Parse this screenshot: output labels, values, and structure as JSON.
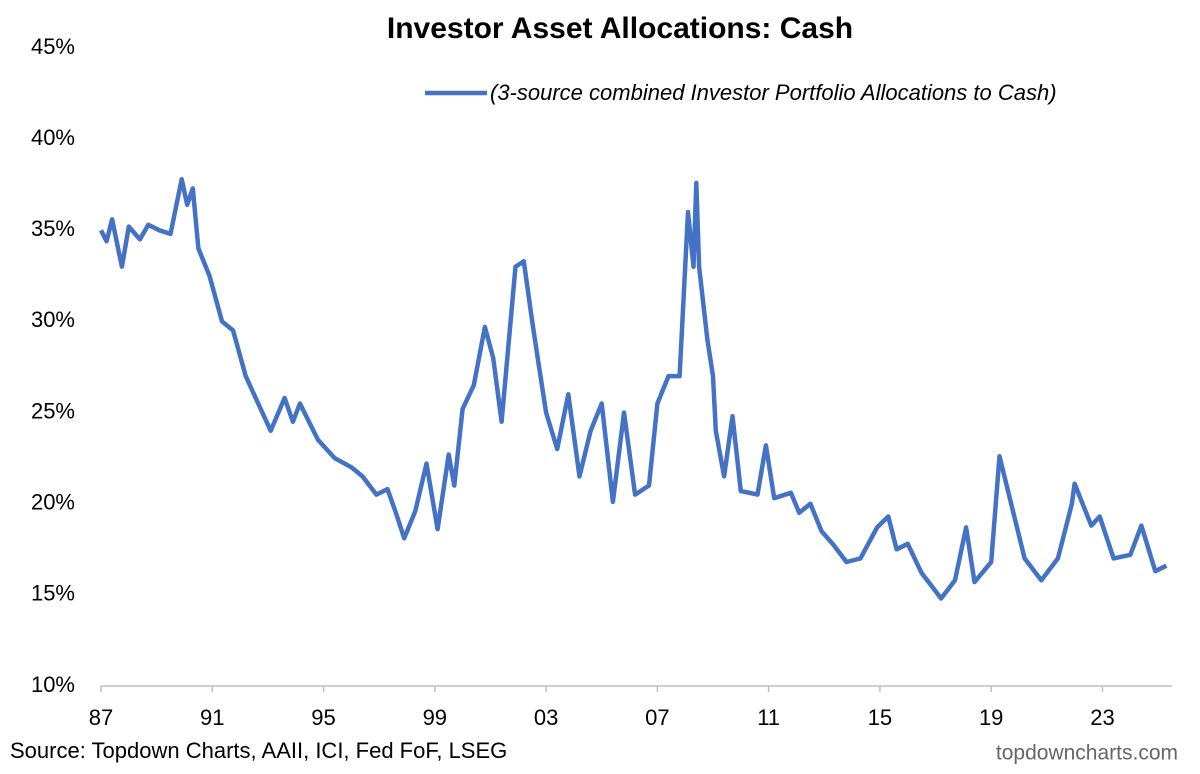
{
  "chart_data": {
    "type": "line",
    "title": "Investor Asset Allocations: Cash",
    "source": "Source: Topdown Charts, AAII, ICI, Fed FoF, LSEG",
    "watermark": "topdowncharts.com",
    "legend": "upper right",
    "series": [
      {
        "name": "(3-source combined Investor Portfolio Allocations to Cash)",
        "color": "#4472c4",
        "x": [
          1987.0,
          1987.2,
          1987.4,
          1987.75,
          1988.0,
          1988.4,
          1988.7,
          1989.1,
          1989.5,
          1989.9,
          1990.1,
          1990.3,
          1990.5,
          1990.9,
          1991.35,
          1991.75,
          1992.2,
          1992.65,
          1993.1,
          1993.6,
          1993.9,
          1994.15,
          1994.8,
          1995.4,
          1996.0,
          1996.4,
          1996.9,
          1997.3,
          1997.6,
          1997.9,
          1998.3,
          1998.7,
          1999.1,
          1999.5,
          1999.7,
          2000.0,
          2000.4,
          2000.8,
          2001.1,
          2001.4,
          2001.9,
          2002.2,
          2002.5,
          2002.7,
          2003.0,
          2003.4,
          2003.8,
          2004.2,
          2004.6,
          2005.0,
          2005.4,
          2005.8,
          2006.2,
          2006.7,
          2007.0,
          2007.4,
          2007.8,
          2008.1,
          2008.3,
          2008.4,
          2008.5,
          2008.8,
          2009.0,
          2009.1,
          2009.4,
          2009.7,
          2010.0,
          2010.6,
          2010.9,
          2011.2,
          2011.8,
          2012.1,
          2012.5,
          2012.9,
          2013.3,
          2013.8,
          2014.3,
          2014.9,
          2015.3,
          2015.6,
          2016.0,
          2016.5,
          2016.8,
          2017.2,
          2017.7,
          2018.1,
          2018.4,
          2019.0,
          2019.3,
          2019.8,
          2020.2,
          2020.8,
          2021.4,
          2021.9,
          2022.0,
          2022.6,
          2022.9,
          2023.4,
          2024.0,
          2024.4,
          2024.9,
          2025.3
        ],
        "values": [
          35.0,
          34.4,
          35.6,
          33.0,
          35.2,
          34.5,
          35.3,
          35.0,
          34.8,
          37.8,
          36.4,
          37.3,
          34.0,
          32.5,
          30.0,
          29.5,
          27.0,
          25.5,
          24.0,
          25.8,
          24.5,
          25.5,
          23.5,
          22.5,
          22.0,
          21.5,
          20.5,
          20.8,
          19.5,
          18.1,
          19.6,
          22.2,
          18.6,
          22.7,
          21.0,
          25.2,
          26.5,
          29.7,
          28.0,
          24.5,
          33.0,
          33.3,
          30.0,
          28.0,
          25.0,
          23.0,
          26.0,
          21.5,
          24.0,
          25.5,
          20.1,
          25.0,
          20.5,
          21.0,
          25.5,
          27.0,
          27.0,
          36.0,
          33.0,
          37.6,
          33.0,
          29.0,
          27.0,
          24.0,
          21.5,
          24.8,
          20.7,
          20.5,
          23.2,
          20.3,
          20.6,
          19.5,
          20.0,
          18.5,
          17.8,
          16.8,
          17.0,
          18.7,
          19.3,
          17.5,
          17.8,
          16.2,
          15.6,
          14.8,
          15.8,
          18.7,
          15.7,
          16.8,
          22.6,
          19.5,
          17.0,
          15.8,
          17.0,
          20.0,
          21.1,
          18.8,
          19.3,
          17.0,
          17.2,
          18.8,
          16.3,
          16.6
        ]
      }
    ],
    "xlim": [
      1987,
      2025.5
    ],
    "xticks": [
      {
        "value": 1987,
        "label": "87"
      },
      {
        "value": 1991,
        "label": "91"
      },
      {
        "value": 1995,
        "label": "95"
      },
      {
        "value": 1999,
        "label": "99"
      },
      {
        "value": 2003,
        "label": "03"
      },
      {
        "value": 2007,
        "label": "07"
      },
      {
        "value": 2011,
        "label": "11"
      },
      {
        "value": 2015,
        "label": "15"
      },
      {
        "value": 2019,
        "label": "19"
      },
      {
        "value": 2023,
        "label": "23"
      }
    ],
    "ylim": [
      10,
      45
    ],
    "yticks": [
      {
        "value": 10,
        "label": "10%"
      },
      {
        "value": 15,
        "label": "15%"
      },
      {
        "value": 20,
        "label": "20%"
      },
      {
        "value": 25,
        "label": "25%"
      },
      {
        "value": 30,
        "label": "30%"
      },
      {
        "value": 35,
        "label": "35%"
      },
      {
        "value": 40,
        "label": "40%"
      },
      {
        "value": 45,
        "label": "45%"
      }
    ]
  }
}
